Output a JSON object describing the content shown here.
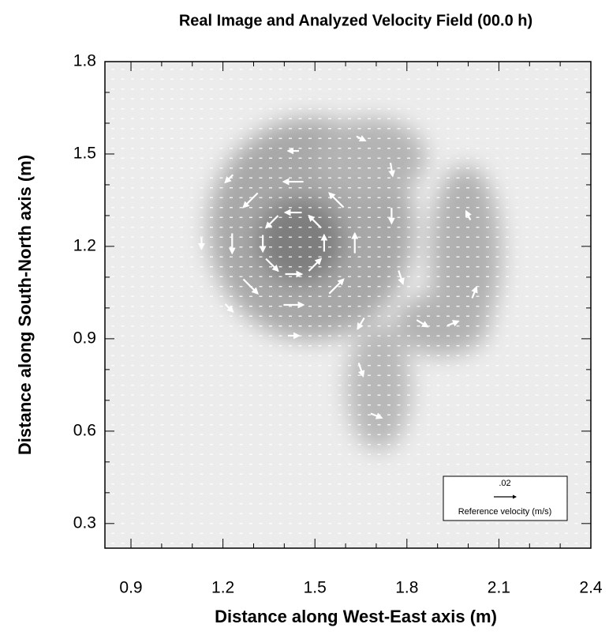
{
  "chart_data": {
    "type": "vector",
    "title": "Real Image and Analyzed Velocity Field (00.0 h)",
    "x_label": "Distance along West-East axis (m)",
    "y_label": "Distance along South-North axis (m)",
    "xlim": [
      0.815,
      2.4
    ],
    "ylim": [
      0.22,
      1.8
    ],
    "xticks": [
      0.9,
      1.2,
      1.5,
      1.8,
      2.1,
      2.4
    ],
    "yticks": [
      0.3,
      0.6,
      0.9,
      1.2,
      1.5,
      1.8
    ],
    "color": "#ffffff",
    "reference": {
      "value": {
        "value": 0.02,
        "label": ".02"
      },
      "label": "Reference velocity (m/s)"
    },
    "vectors": [
      {
        "x": 1.53,
        "y": 1.21,
        "u": 0,
        "v": 0.015
      },
      {
        "x": 1.5,
        "y": 1.28,
        "u": -0.011,
        "v": 0.011
      },
      {
        "x": 1.43,
        "y": 1.31,
        "u": -0.015,
        "v": 0
      },
      {
        "x": 1.36,
        "y": 1.28,
        "u": -0.011,
        "v": -0.011
      },
      {
        "x": 1.33,
        "y": 1.21,
        "u": 0,
        "v": -0.015
      },
      {
        "x": 1.36,
        "y": 1.14,
        "u": 0.011,
        "v": -0.011
      },
      {
        "x": 1.43,
        "y": 1.11,
        "u": 0.015,
        "v": 0
      },
      {
        "x": 1.5,
        "y": 1.14,
        "u": 0.011,
        "v": 0.011
      },
      {
        "x": 1.63,
        "y": 1.21,
        "u": 0,
        "v": 0.018
      },
      {
        "x": 1.57,
        "y": 1.35,
        "u": -0.013,
        "v": 0.013
      },
      {
        "x": 1.43,
        "y": 1.41,
        "u": -0.018,
        "v": 0
      },
      {
        "x": 1.29,
        "y": 1.35,
        "u": -0.013,
        "v": -0.013
      },
      {
        "x": 1.23,
        "y": 1.21,
        "u": 0,
        "v": -0.018
      },
      {
        "x": 1.29,
        "y": 1.07,
        "u": 0.013,
        "v": -0.013
      },
      {
        "x": 1.43,
        "y": 1.01,
        "u": 0.018,
        "v": 0
      },
      {
        "x": 1.57,
        "y": 1.07,
        "u": 0.013,
        "v": 0.013
      },
      {
        "x": 1.43,
        "y": 1.51,
        "u": -0.01,
        "v": 0
      },
      {
        "x": 1.43,
        "y": 0.91,
        "u": 0.01,
        "v": 0
      },
      {
        "x": 1.13,
        "y": 1.21,
        "u": 0,
        "v": -0.01
      },
      {
        "x": 1.22,
        "y": 1.42,
        "u": -0.007,
        "v": -0.007
      },
      {
        "x": 1.22,
        "y": 1.0,
        "u": 0.007,
        "v": -0.007
      },
      {
        "x": 1.65,
        "y": 1.55,
        "u": 0.008,
        "v": -0.004
      },
      {
        "x": 1.75,
        "y": 1.45,
        "u": 0.002,
        "v": -0.012
      },
      {
        "x": 1.75,
        "y": 1.3,
        "u": 0,
        "v": -0.014
      },
      {
        "x": 1.78,
        "y": 1.1,
        "u": 0.004,
        "v": -0.012
      },
      {
        "x": 1.85,
        "y": 0.95,
        "u": 0.01,
        "v": -0.006
      },
      {
        "x": 1.95,
        "y": 0.95,
        "u": 0.01,
        "v": 0.004
      },
      {
        "x": 2.02,
        "y": 1.05,
        "u": 0.004,
        "v": 0.01
      },
      {
        "x": 2.0,
        "y": 1.3,
        "u": -0.004,
        "v": 0.008
      },
      {
        "x": 1.65,
        "y": 0.95,
        "u": -0.006,
        "v": -0.01
      },
      {
        "x": 1.65,
        "y": 0.8,
        "u": 0.004,
        "v": -0.012
      },
      {
        "x": 1.7,
        "y": 0.65,
        "u": 0.01,
        "v": -0.004
      }
    ]
  }
}
